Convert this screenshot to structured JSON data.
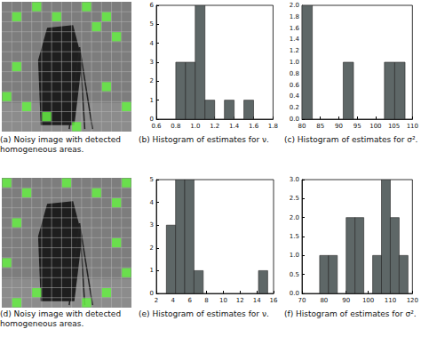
{
  "images": [
    {
      "caption": "(a) Noisy image with detected homogeneous areas."
    },
    {
      "caption": "(d) Noisy image with detected homogeneous areas."
    }
  ],
  "chart_data": [
    {
      "type": "histogram",
      "title": "(b) Histogram of estimates for ν.",
      "bins": [
        0.8,
        0.9,
        1.0,
        1.1,
        1.2,
        1.3,
        1.4,
        1.5,
        1.6
      ],
      "values": [
        3,
        3,
        6,
        1,
        0,
        1,
        0,
        1
      ],
      "color": "#5e6767",
      "xlim": [
        0.6,
        1.8
      ],
      "xticks": [
        0.6,
        0.8,
        {
          "value": 1,
          "label": "1.0"
        },
        1.2,
        1.4,
        1.6,
        1.8
      ],
      "ylim": [
        0,
        6
      ],
      "yticks": [
        0,
        1,
        2,
        3,
        4,
        5,
        6
      ],
      "grid": false
    },
    {
      "type": "histogram",
      "title": "(c) Histogram of estimates for σ².",
      "bins": [
        80,
        82.8,
        85.6,
        88.4,
        91.2,
        94,
        96.8,
        99.6,
        102.4,
        105.2,
        108
      ],
      "values": [
        2,
        0,
        0,
        0,
        1,
        0,
        0,
        0,
        1,
        1
      ],
      "color": "#5e6767",
      "xlim": [
        80,
        110
      ],
      "xticks": [
        80,
        85,
        90,
        95,
        100,
        105,
        110
      ],
      "ylim": [
        0,
        2
      ],
      "yticks": [
        {
          "value": 0,
          "label": "0.0"
        },
        0.2,
        0.4,
        0.6,
        0.8,
        {
          "value": 1,
          "label": "1.0"
        },
        1.2,
        1.4,
        1.6,
        1.8,
        {
          "value": 2,
          "label": "2.0"
        }
      ],
      "grid": false
    },
    {
      "type": "histogram",
      "title": "(e) Histogram of estimates for ν.",
      "bins": [
        3.2,
        4.3,
        5.4,
        6.5,
        7.6,
        8.7,
        9.8,
        10.9,
        12.0,
        13.1,
        14.2,
        15.3
      ],
      "values": [
        3,
        5,
        5,
        1,
        0,
        0,
        0,
        0,
        0,
        0,
        1
      ],
      "color": "#5e6767",
      "xlim": [
        2,
        16
      ],
      "xticks": [
        2,
        4,
        6,
        8,
        10,
        12,
        14,
        16
      ],
      "ylim": [
        0,
        5
      ],
      "yticks": [
        0,
        1,
        2,
        3,
        4,
        5
      ],
      "grid": false
    },
    {
      "type": "histogram",
      "title": "(f) Histogram of estimates for σ².",
      "bins": [
        78,
        82,
        86,
        90,
        94,
        98,
        102,
        106,
        110,
        114,
        118
      ],
      "values": [
        1,
        1,
        0,
        2,
        2,
        0,
        1,
        3,
        2,
        1
      ],
      "color": "#5e6767",
      "xlim": [
        70,
        120
      ],
      "xticks": [
        70,
        80,
        90,
        100,
        110,
        120
      ],
      "ylim": [
        0,
        3
      ],
      "yticks": [
        {
          "value": 0,
          "label": "0.0"
        },
        0.5,
        {
          "value": 1,
          "label": "1.0"
        },
        1.5,
        {
          "value": 2,
          "label": "2.0"
        },
        2.5,
        {
          "value": 3,
          "label": "3.0"
        }
      ],
      "grid": false
    }
  ]
}
